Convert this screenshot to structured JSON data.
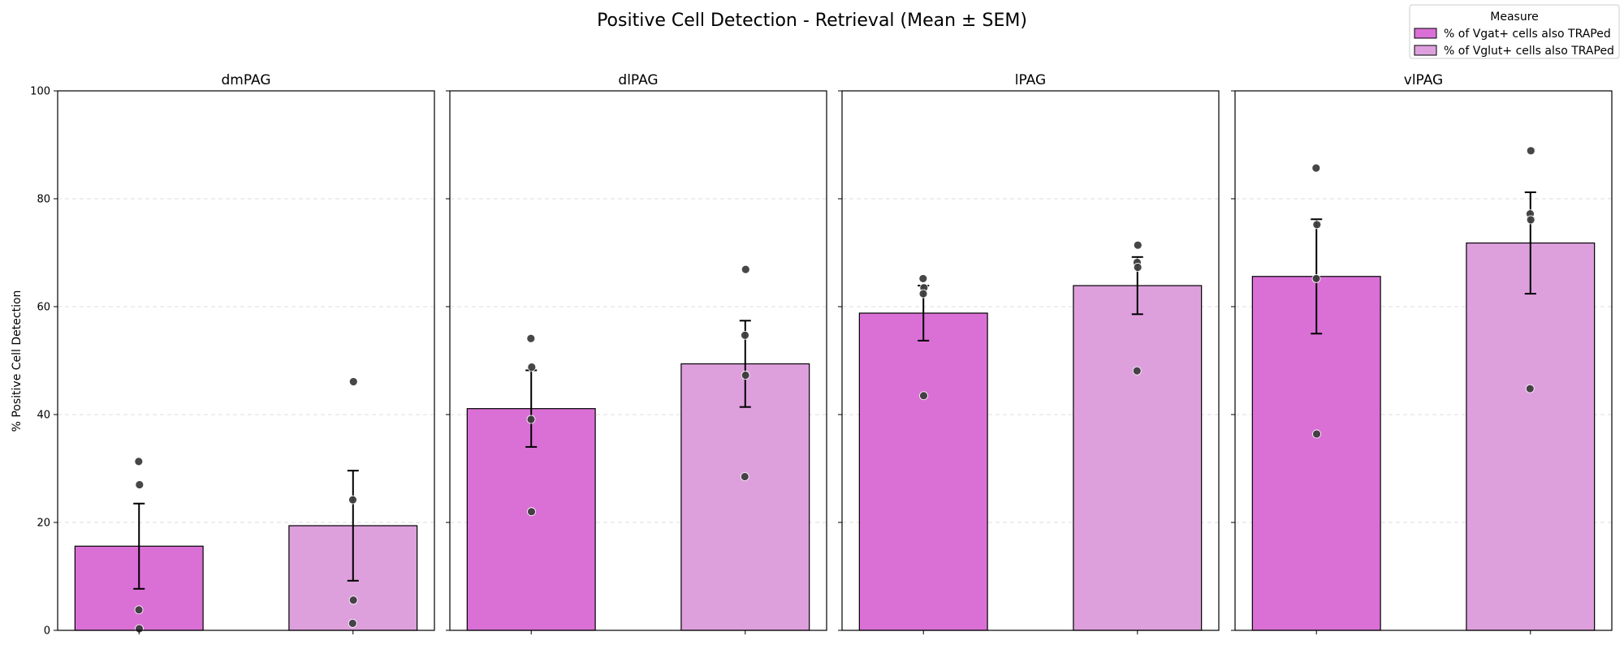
{
  "chart_data": {
    "type": "bar",
    "title": "Positive Cell Detection - Retrieval (Mean ± SEM)",
    "ylabel": "% Positive Cell Detection",
    "xlabel": "",
    "ylim": [
      0,
      100
    ],
    "yticks": [
      0,
      20,
      40,
      60,
      80,
      100
    ],
    "grid": "horizontal dashed",
    "legend": {
      "title": "Measure",
      "placement": "top-right",
      "entries": [
        "% of Vgat+ cells also TRAPed",
        "% of Vglut+ cells also TRAPed"
      ]
    },
    "colors": {
      "vgat": "#da70d6",
      "vglut": "#dda0dd",
      "points": "#3d3d3d"
    },
    "panels": [
      {
        "name": "dmPAG",
        "bars": [
          {
            "measure": "% of Vgat+ cells also TRAPed",
            "mean": 15.6,
            "sem": 7.9,
            "points": [
              31.3,
              27.0,
              3.8,
              0.3
            ]
          },
          {
            "measure": "% of Vglut+ cells also TRAPed",
            "mean": 19.4,
            "sem": 10.2,
            "points": [
              46.1,
              24.2,
              5.6,
              1.3
            ]
          }
        ]
      },
      {
        "name": "dlPAG",
        "bars": [
          {
            "measure": "% of Vgat+ cells also TRAPed",
            "mean": 41.1,
            "sem": 7.1,
            "points": [
              54.1,
              48.8,
              39.1,
              22.0
            ]
          },
          {
            "measure": "% of Vglut+ cells also TRAPed",
            "mean": 49.4,
            "sem": 8.0,
            "points": [
              66.9,
              54.7,
              47.3,
              28.5
            ]
          }
        ]
      },
      {
        "name": "lPAG",
        "bars": [
          {
            "measure": "% of Vgat+ cells also TRAPed",
            "mean": 58.8,
            "sem": 5.1,
            "points": [
              65.2,
              63.5,
              62.4,
              43.5
            ]
          },
          {
            "measure": "% of Vglut+ cells also TRAPed",
            "mean": 63.9,
            "sem": 5.3,
            "points": [
              71.4,
              68.2,
              67.3,
              48.1
            ]
          }
        ]
      },
      {
        "name": "vlPAG",
        "bars": [
          {
            "measure": "% of Vgat+ cells also TRAPed",
            "mean": 65.6,
            "sem": 10.6,
            "points": [
              85.7,
              75.2,
              65.2,
              36.4
            ]
          },
          {
            "measure": "% of Vglut+ cells also TRAPed",
            "mean": 71.8,
            "sem": 9.4,
            "points": [
              88.9,
              77.2,
              76.1,
              44.8
            ]
          }
        ]
      }
    ]
  }
}
